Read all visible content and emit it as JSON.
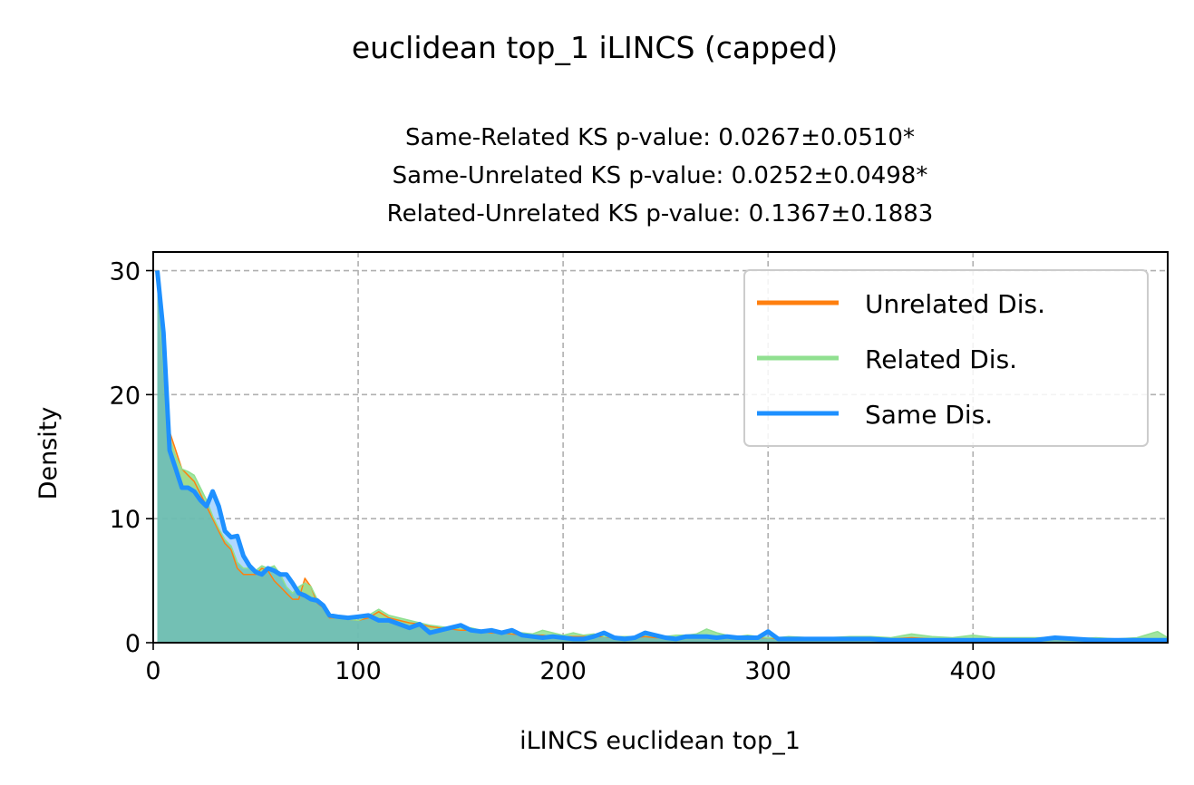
{
  "suptitle": "euclidean top_1 iLINCS (capped)",
  "subtitle_lines": [
    "Same-Related KS p-value: 0.0267±0.0510*",
    "Same-Unrelated KS p-value: 0.0252±0.0498*",
    "Related-Unrelated KS p-value: 0.1367±0.1883"
  ],
  "chart_data": {
    "type": "area",
    "title": "euclidean top_1 iLINCS (capped)",
    "xlabel": "iLINCS euclidean top_1",
    "ylabel": "Density",
    "xlim": [
      0,
      495
    ],
    "ylim": [
      0,
      31.5
    ],
    "xticks": [
      0,
      100,
      200,
      300,
      400
    ],
    "yticks": [
      0,
      10,
      20,
      30
    ],
    "grid": true,
    "legend_position": "top-right",
    "x": [
      2,
      5,
      8,
      11,
      14,
      17,
      20,
      23,
      26,
      29,
      32,
      35,
      38,
      41,
      44,
      47,
      50,
      53,
      56,
      59,
      62,
      65,
      68,
      71,
      74,
      77,
      80,
      83,
      86,
      90,
      95,
      100,
      105,
      110,
      115,
      120,
      125,
      130,
      135,
      140,
      145,
      150,
      155,
      160,
      165,
      170,
      175,
      180,
      185,
      190,
      195,
      200,
      205,
      210,
      215,
      220,
      225,
      230,
      235,
      240,
      245,
      250,
      255,
      260,
      265,
      270,
      275,
      280,
      285,
      290,
      295,
      300,
      305,
      310,
      320,
      330,
      340,
      350,
      360,
      370,
      380,
      390,
      400,
      410,
      420,
      430,
      440,
      450,
      460,
      470,
      480,
      490,
      495
    ],
    "series": [
      {
        "name": "Unrelated Dis.",
        "color": "#ff7f0e",
        "values": [
          30,
          23,
          17,
          15.5,
          14,
          13.5,
          13,
          12,
          11,
          10,
          9,
          8,
          7.5,
          6,
          5.5,
          5.5,
          5.5,
          6,
          5.8,
          5,
          4.5,
          4,
          3.5,
          3.5,
          5.2,
          4.5,
          3.2,
          2.8,
          2.0,
          2.0,
          1.9,
          1.8,
          2.0,
          2.5,
          2.0,
          1.8,
          1.6,
          1.5,
          1.3,
          1.2,
          1.1,
          1.0,
          1.0,
          0.9,
          0.8,
          0.8,
          0.7,
          0.6,
          0.6,
          0.6,
          0.5,
          0.5,
          0.5,
          0.5,
          0.5,
          0.5,
          0.4,
          0.4,
          0.4,
          0.5,
          0.4,
          0.4,
          0.4,
          0.4,
          0.5,
          0.6,
          0.5,
          0.4,
          0.4,
          0.4,
          0.4,
          0.4,
          0.3,
          0.3,
          0.3,
          0.3,
          0.3,
          0.3,
          0.3,
          0.4,
          0.3,
          0.3,
          0.3,
          0.3,
          0.3,
          0.3,
          0.3,
          0.3,
          0.3,
          0.3,
          0.3,
          0.3,
          0.3
        ]
      },
      {
        "name": "Related Dis.",
        "color": "#90e090",
        "values": [
          30,
          22,
          16.5,
          15,
          14,
          13.8,
          13.5,
          12.5,
          11.5,
          10.2,
          9.2,
          8.3,
          7.8,
          6.5,
          6.0,
          6.0,
          5.8,
          6.2,
          6.0,
          6.2,
          5.5,
          4.5,
          4.0,
          4.5,
          4.8,
          4.5,
          3.5,
          2.8,
          2.2,
          2.0,
          1.9,
          1.8,
          2.2,
          2.7,
          2.2,
          2.0,
          1.8,
          1.6,
          1.4,
          1.3,
          1.2,
          1.1,
          1.2,
          1.0,
          0.9,
          0.9,
          0.8,
          0.8,
          0.7,
          1.0,
          0.8,
          0.6,
          0.8,
          0.6,
          0.7,
          0.5,
          0.5,
          0.5,
          0.5,
          0.6,
          0.5,
          0.5,
          0.6,
          0.6,
          0.7,
          1.1,
          0.8,
          0.6,
          0.5,
          0.6,
          0.5,
          0.4,
          0.4,
          0.5,
          0.4,
          0.4,
          0.5,
          0.5,
          0.4,
          0.7,
          0.5,
          0.4,
          0.6,
          0.4,
          0.4,
          0.4,
          0.4,
          0.3,
          0.4,
          0.3,
          0.4,
          0.9,
          0.4
        ]
      },
      {
        "name": "Same Dis.",
        "color": "#1e90ff",
        "values": [
          30,
          25,
          15.5,
          14,
          12.5,
          12.5,
          12.2,
          11.5,
          11,
          12.2,
          11,
          9,
          8.5,
          8.6,
          7,
          6.2,
          5.7,
          5.5,
          6,
          5.8,
          5.5,
          5.5,
          4.8,
          4,
          3.8,
          3.5,
          3.4,
          3.0,
          2.2,
          2.1,
          2.0,
          2.1,
          2.2,
          1.8,
          1.8,
          1.5,
          1.2,
          1.5,
          0.8,
          1.0,
          1.2,
          1.4,
          1.0,
          0.9,
          1.0,
          0.8,
          1.0,
          0.6,
          0.5,
          0.4,
          0.5,
          0.4,
          0.3,
          0.3,
          0.5,
          0.8,
          0.4,
          0.3,
          0.4,
          0.8,
          0.6,
          0.4,
          0.3,
          0.5,
          0.5,
          0.5,
          0.4,
          0.5,
          0.4,
          0.4,
          0.4,
          0.9,
          0.3,
          0.3,
          0.3,
          0.3,
          0.3,
          0.3,
          0.2,
          0.2,
          0.2,
          0.2,
          0.2,
          0.2,
          0.2,
          0.2,
          0.4,
          0.3,
          0.2,
          0.2,
          0.2,
          0.2,
          0.2
        ]
      }
    ]
  }
}
